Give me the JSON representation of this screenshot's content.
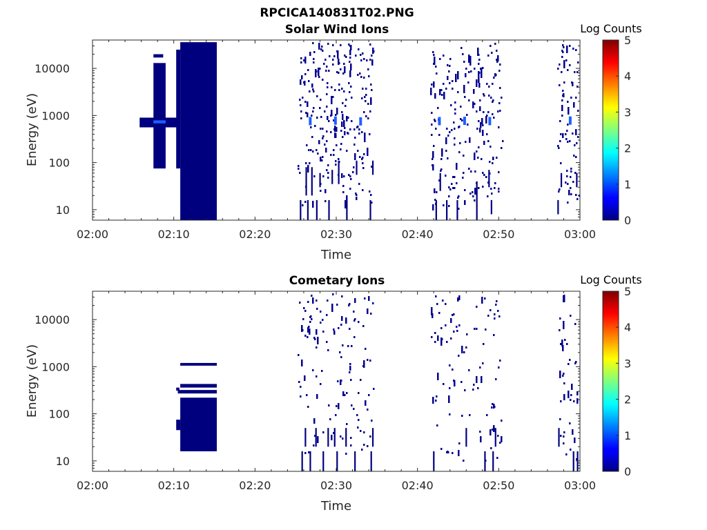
{
  "figure_title": "RPCICA140831T02.PNG",
  "colors": {
    "low": "#00007f",
    "mid": "#1f5fff",
    "accent": "#00008f"
  },
  "chart_data": [
    {
      "type": "heatmap",
      "title": "Solar Wind Ions",
      "xlabel": "Time",
      "ylabel": "Energy (eV)",
      "x_ticks": [
        "02:00",
        "02:10",
        "02:20",
        "02:30",
        "02:40",
        "02:50",
        "03:00"
      ],
      "x_range_minutes": [
        0,
        60
      ],
      "y_ticks": [
        "10",
        "100",
        "1000",
        "10000"
      ],
      "y_scale": "log",
      "y_range": [
        6,
        40000
      ],
      "colorbar": {
        "title": "Log Counts",
        "ticks": [
          "0",
          "1",
          "2",
          "3",
          "4",
          "5"
        ],
        "range": [
          0,
          5
        ],
        "colormap": "jet"
      },
      "blocks": [
        {
          "t0": 5.8,
          "t1": 10.5,
          "e0": 560,
          "e1": 900,
          "level": 0
        },
        {
          "t0": 7.5,
          "t1": 9.0,
          "e0": 75,
          "e1": 13000,
          "level": 0
        },
        {
          "t0": 7.5,
          "t1": 9.0,
          "e0": 680,
          "e1": 790,
          "level": 0.6
        },
        {
          "t0": 7.5,
          "t1": 8.7,
          "e0": 17000,
          "e1": 20000,
          "level": 0
        },
        {
          "t0": 10.3,
          "t1": 10.8,
          "e0": 75,
          "e1": 25000,
          "level": 0
        },
        {
          "t0": 10.8,
          "t1": 15.3,
          "e0": 6,
          "e1": 36000,
          "level": 0
        }
      ],
      "bursts": [
        {
          "t0": 25.2,
          "t1": 34.5,
          "n": 260,
          "seed": 11,
          "blue": [
            {
              "t": 26.8,
              "e": 760
            },
            {
              "t": 29.9,
              "e": 780
            },
            {
              "t": 33.0,
              "e": 750
            }
          ]
        },
        {
          "t0": 41.5,
          "t1": 50.5,
          "n": 220,
          "seed": 23,
          "blue": [
            {
              "t": 42.7,
              "e": 760
            },
            {
              "t": 45.8,
              "e": 770
            },
            {
              "t": 48.9,
              "e": 760
            }
          ]
        },
        {
          "t0": 57.2,
          "t1": 59.8,
          "n": 75,
          "seed": 37,
          "blue": [
            {
              "t": 58.8,
              "e": 780
            }
          ]
        }
      ],
      "streaks": [
        {
          "t": 25.6,
          "e0": 6,
          "e1": 16
        },
        {
          "t": 26.3,
          "e0": 20,
          "e1": 80
        },
        {
          "t": 26.5,
          "e0": 6,
          "e1": 16
        },
        {
          "t": 27.0,
          "e0": 20,
          "e1": 80
        },
        {
          "t": 27.6,
          "e0": 6,
          "e1": 16
        },
        {
          "t": 28.0,
          "e0": 30,
          "e1": 60
        },
        {
          "t": 29.1,
          "e0": 6,
          "e1": 16
        },
        {
          "t": 29.5,
          "e0": 35,
          "e1": 70
        },
        {
          "t": 30.3,
          "e0": 35,
          "e1": 110
        },
        {
          "t": 31.3,
          "e0": 6,
          "e1": 16
        },
        {
          "t": 32.5,
          "e0": 55,
          "e1": 110
        },
        {
          "t": 34.5,
          "e0": 55,
          "e1": 110
        },
        {
          "t": 34.2,
          "e0": 6,
          "e1": 16
        },
        {
          "t": 42.3,
          "e0": 6,
          "e1": 16
        },
        {
          "t": 42.8,
          "e0": 25,
          "e1": 60
        },
        {
          "t": 43.6,
          "e0": 6,
          "e1": 16
        },
        {
          "t": 44.9,
          "e0": 6,
          "e1": 16
        },
        {
          "t": 47.3,
          "e0": 6,
          "e1": 40
        },
        {
          "t": 48.8,
          "e0": 30,
          "e1": 70
        },
        {
          "t": 49.1,
          "e0": 8,
          "e1": 16
        },
        {
          "t": 57.3,
          "e0": 8,
          "e1": 16
        },
        {
          "t": 57.7,
          "e0": 30,
          "e1": 60
        },
        {
          "t": 59.6,
          "e0": 30,
          "e1": 60
        }
      ]
    },
    {
      "type": "heatmap",
      "title": "Cometary Ions",
      "xlabel": "Time",
      "ylabel": "Energy (eV)",
      "x_ticks": [
        "02:00",
        "02:10",
        "02:20",
        "02:30",
        "02:40",
        "02:50",
        "03:00"
      ],
      "x_range_minutes": [
        0,
        60
      ],
      "y_ticks": [
        "10",
        "100",
        "1000",
        "10000"
      ],
      "y_scale": "log",
      "y_range": [
        6,
        40000
      ],
      "colorbar": {
        "title": "Log Counts",
        "ticks": [
          "0",
          "1",
          "2",
          "3",
          "4",
          "5"
        ],
        "range": [
          0,
          5
        ],
        "colormap": "jet"
      },
      "blocks": [
        {
          "t0": 10.8,
          "t1": 15.3,
          "e0": 16,
          "e1": 220,
          "level": 0
        },
        {
          "t0": 10.5,
          "t1": 15.3,
          "e0": 270,
          "e1": 320,
          "level": 0
        },
        {
          "t0": 10.8,
          "t1": 15.3,
          "e0": 360,
          "e1": 430,
          "level": 0
        },
        {
          "t0": 10.8,
          "t1": 15.3,
          "e0": 1050,
          "e1": 1200,
          "level": 0
        },
        {
          "t0": 10.3,
          "t1": 10.8,
          "e0": 45,
          "e1": 75,
          "level": 0
        },
        {
          "t0": 10.3,
          "t1": 10.7,
          "e0": 310,
          "e1": 360,
          "level": 0
        }
      ],
      "bursts": [
        {
          "t0": 25.2,
          "t1": 34.5,
          "n": 130,
          "seed": 53,
          "blue": []
        },
        {
          "t0": 41.5,
          "t1": 50.5,
          "n": 100,
          "seed": 67,
          "blue": []
        },
        {
          "t0": 57.2,
          "t1": 59.8,
          "n": 40,
          "seed": 79,
          "blue": []
        }
      ],
      "streaks": [
        {
          "t": 25.8,
          "e0": 6,
          "e1": 16
        },
        {
          "t": 26.2,
          "e0": 20,
          "e1": 50
        },
        {
          "t": 26.8,
          "e0": 6,
          "e1": 16
        },
        {
          "t": 27.5,
          "e0": 20,
          "e1": 50
        },
        {
          "t": 28.4,
          "e0": 6,
          "e1": 16
        },
        {
          "t": 29.0,
          "e0": 20,
          "e1": 50
        },
        {
          "t": 29.8,
          "e0": 20,
          "e1": 50
        },
        {
          "t": 30.1,
          "e0": 6,
          "e1": 16
        },
        {
          "t": 31.2,
          "e0": 20,
          "e1": 50
        },
        {
          "t": 32.3,
          "e0": 6,
          "e1": 16
        },
        {
          "t": 34.3,
          "e0": 6,
          "e1": 16
        },
        {
          "t": 34.5,
          "e0": 20,
          "e1": 50
        },
        {
          "t": 42.0,
          "e0": 6,
          "e1": 16
        },
        {
          "t": 46.0,
          "e0": 20,
          "e1": 50
        },
        {
          "t": 48.3,
          "e0": 6,
          "e1": 16
        },
        {
          "t": 49.3,
          "e0": 6,
          "e1": 16
        },
        {
          "t": 49.6,
          "e0": 20,
          "e1": 50
        },
        {
          "t": 57.4,
          "e0": 20,
          "e1": 50
        },
        {
          "t": 59.2,
          "e0": 6,
          "e1": 16
        },
        {
          "t": 59.7,
          "e0": 6,
          "e1": 16
        }
      ]
    }
  ]
}
